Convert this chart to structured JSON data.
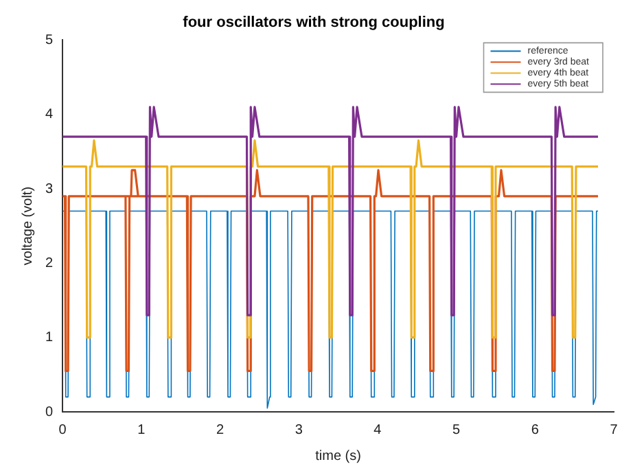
{
  "chart_data": {
    "type": "line",
    "title": "four oscillators with strong coupling",
    "xlabel": "time (s)",
    "ylabel": "voltage (volt)",
    "xlim": [
      0,
      7
    ],
    "ylim": [
      0,
      5
    ],
    "xticks": [
      0,
      1,
      2,
      3,
      4,
      5,
      6,
      7
    ],
    "yticks": [
      0,
      1,
      2,
      3,
      4,
      5
    ],
    "grid": false,
    "legend": "top right",
    "marker": "none",
    "line_style": "solid",
    "series": [
      {
        "name": "reference",
        "color": "#0072bd",
        "x": [
          0,
          0.03,
          0.04,
          0.07,
          0.08,
          0.3,
          0.31,
          0.34,
          0.35,
          0.55,
          0.56,
          0.59,
          0.6,
          0.8,
          0.81,
          0.84,
          0.85,
          1.06,
          1.07,
          1.1,
          1.11,
          1.33,
          1.34,
          1.37,
          1.38,
          1.58,
          1.59,
          1.62,
          1.63,
          1.83,
          1.84,
          1.87,
          1.88,
          2.09,
          2.1,
          2.13,
          2.14,
          2.34,
          2.35,
          2.38,
          2.39,
          2.59,
          2.6,
          2.63,
          2.64,
          2.86,
          2.87,
          2.9,
          2.91,
          3.12,
          3.13,
          3.16,
          3.17,
          3.38,
          3.39,
          3.42,
          3.43,
          3.64,
          3.65,
          3.68,
          3.69,
          3.91,
          3.92,
          3.95,
          3.96,
          4.17,
          4.18,
          4.21,
          4.22,
          4.42,
          4.43,
          4.46,
          4.47,
          4.66,
          4.67,
          4.7,
          4.71,
          4.93,
          4.94,
          4.97,
          4.98,
          5.18,
          5.19,
          5.22,
          5.23,
          5.45,
          5.46,
          5.49,
          5.5,
          5.7,
          5.71,
          5.74,
          5.75,
          5.96,
          5.97,
          6.0,
          6.01,
          6.21,
          6.22,
          6.25,
          6.26,
          6.47,
          6.48,
          6.51,
          6.52,
          6.73,
          6.74,
          6.77,
          6.78,
          6.8
        ],
        "values": [
          2.7,
          2.7,
          0.2,
          0.2,
          2.7,
          2.7,
          0.2,
          0.2,
          2.7,
          2.7,
          0.2,
          0.2,
          2.7,
          2.7,
          0.2,
          0.2,
          2.7,
          2.7,
          0.2,
          0.2,
          2.7,
          2.7,
          0.2,
          0.2,
          2.7,
          2.7,
          0.2,
          0.2,
          2.7,
          2.7,
          0.2,
          0.2,
          2.7,
          2.7,
          0.2,
          0.2,
          2.7,
          2.7,
          0.2,
          0.2,
          2.7,
          2.7,
          0.05,
          0.2,
          2.7,
          2.7,
          0.2,
          0.2,
          2.7,
          2.7,
          0.2,
          0.2,
          2.7,
          2.7,
          0.2,
          0.2,
          2.7,
          2.7,
          0.2,
          0.2,
          2.7,
          2.7,
          0.2,
          0.2,
          2.7,
          2.7,
          0.2,
          0.2,
          2.7,
          2.7,
          0.2,
          0.2,
          2.7,
          2.7,
          0.2,
          0.2,
          2.7,
          2.7,
          0.2,
          0.2,
          2.7,
          2.7,
          0.2,
          0.2,
          2.7,
          2.7,
          0.2,
          0.2,
          2.7,
          2.7,
          0.2,
          0.2,
          2.7,
          2.7,
          0.2,
          0.2,
          2.7,
          2.7,
          0.2,
          0.2,
          2.7,
          2.7,
          0.2,
          0.2,
          2.7,
          2.7,
          0.1,
          0.2,
          2.7,
          2.7
        ]
      },
      {
        "name": "every 3rd beat",
        "color": "#d95319",
        "x": [
          0,
          0.03,
          0.04,
          0.07,
          0.08,
          0.87,
          0.88,
          0.92,
          0.96,
          0.8,
          0.81,
          0.84,
          0.85,
          1.58,
          1.59,
          1.62,
          1.63,
          2.34,
          2.35,
          2.38,
          2.39,
          2.44,
          2.47,
          2.51,
          3.12,
          3.13,
          3.16,
          3.17,
          3.91,
          3.92,
          3.95,
          3.96,
          3.98,
          4.01,
          4.05,
          4.66,
          4.67,
          4.7,
          4.71,
          5.45,
          5.46,
          5.49,
          5.5,
          5.54,
          5.57,
          5.61,
          6.21,
          6.22,
          6.25,
          6.26,
          6.8
        ],
        "values": [
          2.9,
          2.9,
          0.55,
          0.55,
          2.9,
          2.9,
          3.25,
          3.25,
          2.9,
          2.9,
          0.55,
          0.55,
          2.9,
          2.9,
          0.55,
          0.55,
          2.9,
          2.9,
          0.55,
          0.55,
          2.9,
          2.9,
          3.25,
          2.9,
          2.9,
          0.55,
          0.55,
          2.9,
          2.9,
          0.55,
          0.55,
          2.9,
          2.9,
          3.25,
          2.9,
          2.9,
          0.55,
          0.55,
          2.9,
          2.9,
          0.55,
          0.55,
          2.9,
          2.9,
          3.25,
          2.9,
          2.9,
          0.55,
          0.55,
          2.9,
          2.9
        ]
      },
      {
        "name": "every 4th beat",
        "color": "#edb120",
        "x": [
          0,
          0.3,
          0.31,
          0.34,
          0.35,
          0.37,
          0.4,
          0.44,
          1.33,
          1.34,
          1.37,
          1.38,
          2.34,
          2.35,
          2.38,
          2.39,
          2.41,
          2.44,
          2.48,
          3.38,
          3.39,
          3.42,
          3.43,
          4.42,
          4.43,
          4.46,
          4.47,
          4.49,
          4.52,
          4.56,
          5.45,
          5.46,
          5.49,
          5.5,
          6.47,
          6.48,
          6.51,
          6.52,
          6.8
        ],
        "values": [
          3.3,
          3.3,
          1.0,
          1.0,
          3.3,
          3.3,
          3.65,
          3.3,
          3.3,
          1.0,
          1.0,
          3.3,
          3.3,
          1.0,
          1.0,
          3.3,
          3.3,
          3.65,
          3.3,
          3.3,
          1.0,
          1.0,
          3.3,
          3.3,
          1.0,
          1.0,
          3.3,
          3.3,
          3.65,
          3.3,
          3.3,
          1.0,
          1.0,
          3.3,
          3.3,
          1.0,
          1.0,
          3.3,
          3.3
        ]
      },
      {
        "name": "every 5th beat",
        "color": "#7e2f8e",
        "x": [
          0,
          1.06,
          1.07,
          1.1,
          1.11,
          1.13,
          1.16,
          1.22,
          2.34,
          2.35,
          2.38,
          2.39,
          2.41,
          2.44,
          2.5,
          3.64,
          3.65,
          3.68,
          3.69,
          3.71,
          3.74,
          3.8,
          4.93,
          4.94,
          4.97,
          4.98,
          5.0,
          5.03,
          5.09,
          6.21,
          6.22,
          6.25,
          6.26,
          6.28,
          6.31,
          6.37,
          6.8
        ],
        "values": [
          3.7,
          3.7,
          1.3,
          1.3,
          4.1,
          3.7,
          4.1,
          3.7,
          3.7,
          1.3,
          1.3,
          4.1,
          3.7,
          4.1,
          3.7,
          3.7,
          1.3,
          1.3,
          4.1,
          3.7,
          4.1,
          3.7,
          3.7,
          1.3,
          1.3,
          4.1,
          3.7,
          4.1,
          3.7,
          3.7,
          1.3,
          1.3,
          4.1,
          3.7,
          4.1,
          3.7,
          3.7
        ]
      }
    ]
  }
}
